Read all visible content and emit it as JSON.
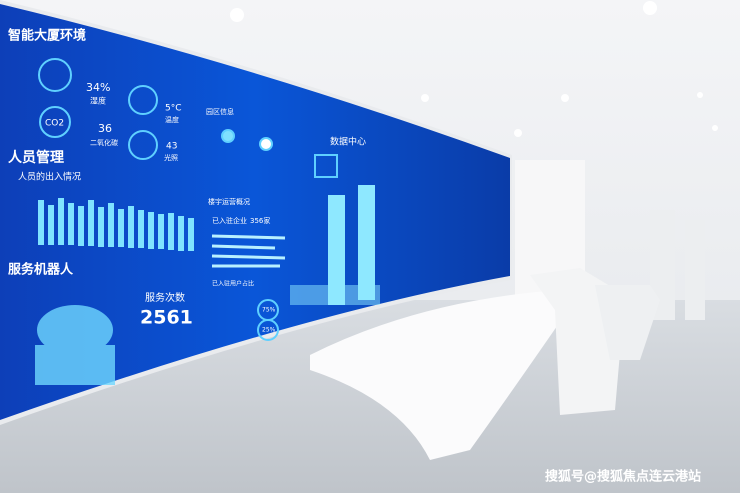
{
  "screen": {
    "env_title": "智能大厦环境",
    "humidity_value": "34%",
    "humidity_label": "湿度",
    "temp_value": "5°C",
    "temp_label": "温度",
    "co2_icon": "CO2",
    "co2_value": "36",
    "co2_label": "二氧化碳",
    "light_value": "43",
    "light_label": "光照",
    "people_title": "人员管理",
    "people_subtitle": "人员的出入情况",
    "robot_title": "服务机器人",
    "service_label": "服务次数",
    "service_value": "2561",
    "center_title": "数据中心",
    "park_title": "园区信息",
    "building_title": "楼宇运营概况",
    "enterprise_label": "已入驻企业",
    "enterprise_value": "356家",
    "user_ratio_title": "已入驻用户占比",
    "ratio_a": "75%",
    "ratio_b": "25%"
  },
  "watermark": "搜狐号@搜狐焦点连云港站"
}
